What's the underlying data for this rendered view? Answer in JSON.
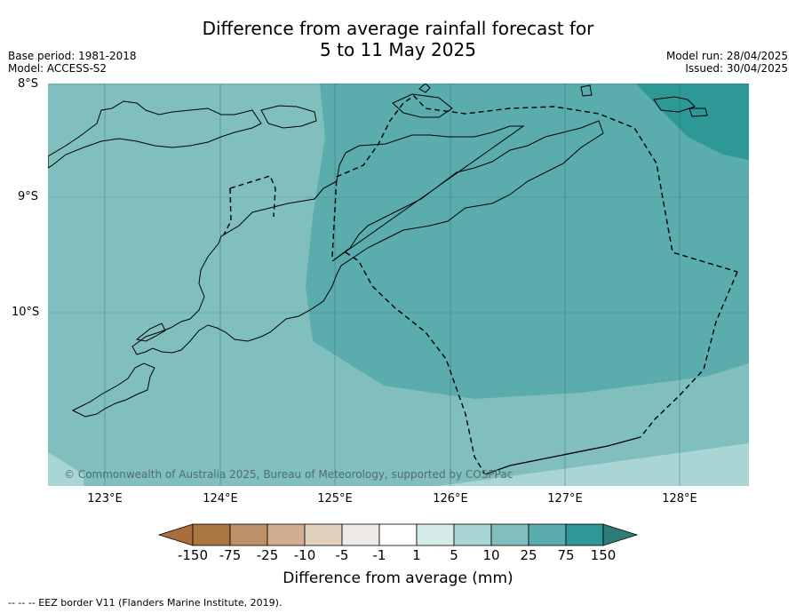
{
  "title_line1": "Difference from average rainfall forecast for",
  "title_line2": "5 to 11 May 2025",
  "base_period": "Base period: 1981-2018",
  "model": "Model: ACCESS-S2",
  "model_run": "Model run: 28/04/2025",
  "issued": "Issued: 30/04/2025",
  "lat_labels": [
    "8°S",
    "9°S",
    "10°S"
  ],
  "lon_labels": [
    "123°E",
    "124°E",
    "125°E",
    "126°E",
    "127°E",
    "128°E"
  ],
  "copyright": "© Commonwealth of Australia 2025, Bureau of Meteorology, supported by COSPPac",
  "colorbar": {
    "ticks": [
      "-150",
      "-75",
      "-25",
      "-10",
      "-5",
      "-1",
      "1",
      "5",
      "10",
      "25",
      "75",
      "150"
    ],
    "colors": [
      "#a86f3c",
      "#a97640",
      "#bd9068",
      "#d1ae8f",
      "#e2d0be",
      "#eee9e4",
      "#ffffff",
      "#d5ebe8",
      "#a9d6d5",
      "#81bfbe",
      "#5aacad",
      "#2e9896",
      "#2e7c78"
    ],
    "title": "Difference from average (mm)"
  },
  "legend_footer": "--  --  -- EEZ border V11 (Flanders Marine Institute, 2019)."
}
